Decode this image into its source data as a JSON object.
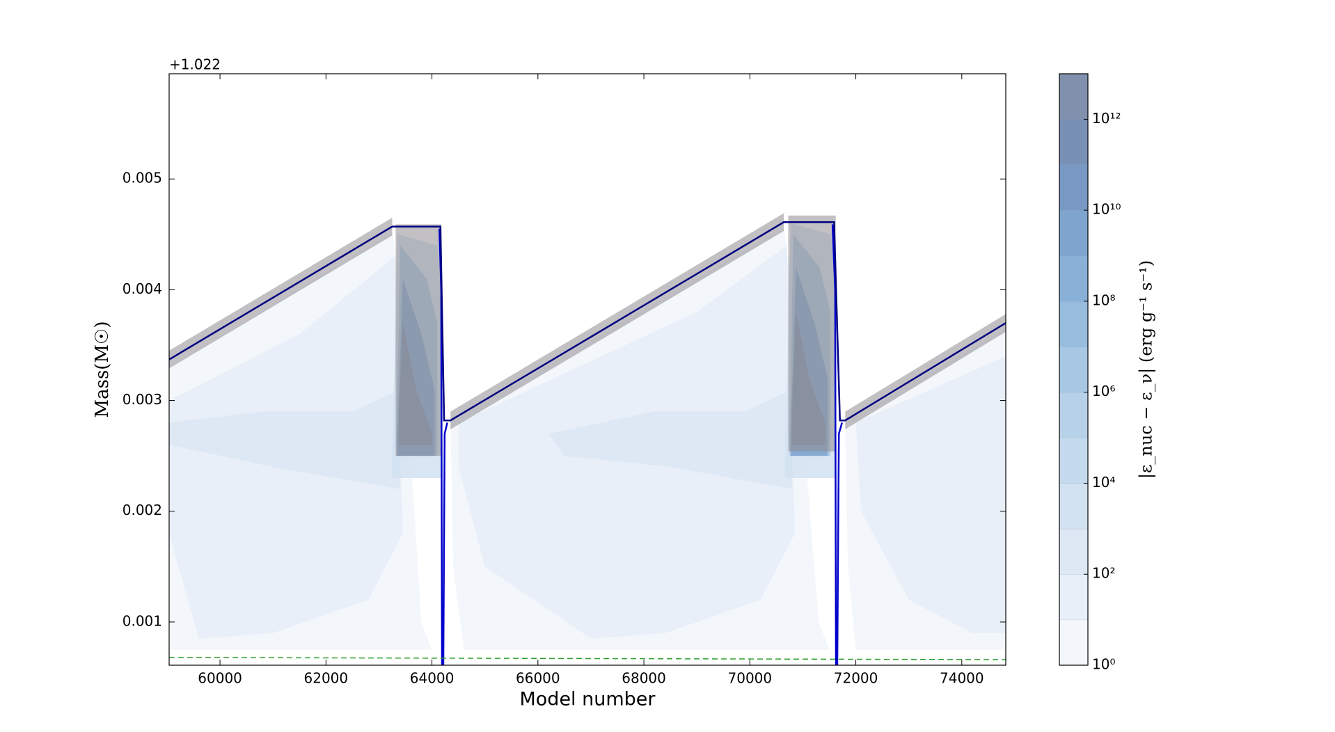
{
  "chart_data": {
    "type": "kippenhahn",
    "xlabel": "Model number",
    "ylabel": "Mass(M☉)",
    "offset_text": "+1.022",
    "xlim": [
      59040,
      74830
    ],
    "ylim": [
      0.00061,
      0.00595
    ],
    "xticks": [
      60000,
      62000,
      64000,
      66000,
      68000,
      70000,
      72000,
      74000
    ],
    "yticks": [
      0.001,
      0.002,
      0.003,
      0.004,
      0.005
    ],
    "series": [
      {
        "color": "#0000cc",
        "width": 2.5,
        "x": [
          64140,
          64175,
          64190,
          64215,
          64240,
          64290
        ],
        "y": [
          0.00455,
          0.004,
          0.00061,
          0.00061,
          0.0027,
          0.0028
        ]
      },
      {
        "color": "#0000cc",
        "width": 2.5,
        "x": [
          71560,
          71610,
          71625,
          71650,
          71680,
          71740
        ],
        "y": [
          0.00459,
          0.004,
          0.00061,
          0.00061,
          0.0027,
          0.0028
        ]
      },
      {
        "color": "#000080",
        "width": 2.5,
        "x": [
          59040,
          63250,
          64160,
          64230,
          64350,
          70640,
          71590,
          71700,
          71800,
          74830
        ],
        "y": [
          0.00337,
          0.00457,
          0.00457,
          0.00282,
          0.00282,
          0.00461,
          0.00461,
          0.00282,
          0.00282,
          0.0037
        ]
      },
      {
        "color": "#2ca02c",
        "width": 1.5,
        "dashed": true,
        "x": [
          59040,
          74830
        ],
        "y": [
          0.00068,
          0.00066
        ]
      }
    ],
    "convection": {
      "color": "#8f8c90",
      "regions": [
        {
          "x": [
            59040,
            63250,
            63250,
            59040
          ],
          "y": [
            0.00345,
            0.00465,
            0.00449,
            0.00329
          ]
        },
        {
          "x": [
            64350,
            70640,
            70640,
            64350
          ],
          "y": [
            0.0029,
            0.00469,
            0.00453,
            0.00274
          ]
        },
        {
          "x": [
            71800,
            74830,
            74830,
            71800
          ],
          "y": [
            0.0029,
            0.00378,
            0.00362,
            0.00274
          ]
        },
        {
          "x": [
            63315,
            64180,
            64180,
            63315
          ],
          "y": [
            0.00459,
            0.00459,
            0.0025,
            0.0025
          ]
        },
        {
          "x": [
            70725,
            71620,
            71620,
            70725
          ],
          "y": [
            0.00467,
            0.00467,
            0.00254,
            0.00254
          ]
        }
      ]
    },
    "burning": {
      "regions": [
        {
          "level": 0,
          "x": [
            59040,
            63250,
            63400,
            63800,
            64000,
            59040
          ],
          "y": [
            0.0033,
            0.00452,
            0.004,
            0.001,
            0.00075,
            0.00075
          ]
        },
        {
          "level": 0,
          "x": [
            64350,
            70640,
            70800,
            71300,
            71500,
            64600,
            64400
          ],
          "y": [
            0.0028,
            0.00456,
            0.004,
            0.001,
            0.00075,
            0.00075,
            0.0015
          ]
        },
        {
          "level": 0,
          "x": [
            71800,
            74830,
            74830,
            72000,
            71850
          ],
          "y": [
            0.0028,
            0.00365,
            0.00075,
            0.00075,
            0.0015
          ]
        },
        {
          "level": 1,
          "x": [
            59040,
            61500,
            63300,
            63450,
            62800,
            61000,
            59600,
            59040
          ],
          "y": [
            0.003,
            0.0036,
            0.0043,
            0.0018,
            0.0012,
            0.0009,
            0.00085,
            0.0018
          ]
        },
        {
          "level": 1,
          "x": [
            64500,
            69000,
            70700,
            70850,
            70200,
            68400,
            67000,
            65000,
            64500
          ],
          "y": [
            0.0028,
            0.0038,
            0.0044,
            0.0018,
            0.0012,
            0.0009,
            0.00085,
            0.0015,
            0.0024
          ]
        },
        {
          "level": 1,
          "x": [
            72000,
            74830,
            74830,
            74200,
            73000,
            72100
          ],
          "y": [
            0.0028,
            0.0034,
            0.0009,
            0.0009,
            0.0012,
            0.002
          ]
        },
        {
          "level": 2,
          "x": [
            59040,
            60800,
            62500,
            63400,
            63400,
            61000,
            59040
          ],
          "y": [
            0.0028,
            0.0029,
            0.0029,
            0.0031,
            0.0022,
            0.0024,
            0.0026
          ]
        },
        {
          "level": 2,
          "x": [
            66200,
            68200,
            69900,
            70800,
            70800,
            68500,
            66500
          ],
          "y": [
            0.0027,
            0.0029,
            0.0029,
            0.0031,
            0.0022,
            0.0024,
            0.0025
          ]
        },
        {
          "level": 3,
          "x": [
            63250,
            63350,
            64100,
            64200,
            64200,
            63250
          ],
          "y": [
            0.0025,
            0.0045,
            0.0044,
            0.004,
            0.0023,
            0.0023
          ]
        },
        {
          "level": 6,
          "x": [
            63330,
            63400,
            63900,
            64100,
            64100,
            63330
          ],
          "y": [
            0.0026,
            0.0044,
            0.0041,
            0.0037,
            0.0025,
            0.0025
          ]
        },
        {
          "level": 9,
          "x": [
            63350,
            63450,
            63800,
            64050,
            64050,
            63350
          ],
          "y": [
            0.0027,
            0.0041,
            0.0036,
            0.0031,
            0.0025,
            0.0025
          ]
        },
        {
          "level": 12,
          "x": [
            63380,
            63450,
            63700,
            64000,
            64000,
            63380
          ],
          "y": [
            0.0029,
            0.0037,
            0.0031,
            0.0027,
            0.0026,
            0.0026
          ]
        },
        {
          "level": 3,
          "x": [
            70670,
            70770,
            71520,
            71620,
            71620,
            70670
          ],
          "y": [
            0.0025,
            0.0046,
            0.0045,
            0.0041,
            0.0023,
            0.0023
          ]
        },
        {
          "level": 6,
          "x": [
            70750,
            70820,
            71320,
            71520,
            71520,
            70750
          ],
          "y": [
            0.0026,
            0.0045,
            0.0042,
            0.0038,
            0.0025,
            0.0025
          ]
        },
        {
          "level": 9,
          "x": [
            70770,
            70870,
            71220,
            71470,
            71470,
            70770
          ],
          "y": [
            0.0027,
            0.0042,
            0.0037,
            0.0032,
            0.0025,
            0.0025
          ]
        },
        {
          "level": 12,
          "x": [
            70800,
            70870,
            71120,
            71420,
            71420,
            70800
          ],
          "y": [
            0.0029,
            0.0038,
            0.0032,
            0.0028,
            0.0026,
            0.0026
          ]
        }
      ]
    },
    "colorbar": {
      "label": "|ε_nuc − ε_ν|  (erg g⁻¹ s⁻¹)",
      "log": true,
      "levels": [
        1,
        10,
        100,
        1000,
        10000,
        100000,
        1000000,
        10000000,
        100000000,
        1000000000,
        10000000000,
        100000000000,
        1000000000000,
        10000000000000
      ],
      "colors": [
        "#f3f7fc",
        "#e8eff8",
        "#dde8f4",
        "#d2e2f1",
        "#c5daed",
        "#b7d1e8",
        "#a7c7e3",
        "#97bcdd",
        "#89b1d7",
        "#7fa5cf",
        "#7899c3",
        "#7890b6",
        "#8090ad"
      ],
      "ticks": [
        {
          "value": 1,
          "label": "10⁰"
        },
        {
          "value": 100,
          "label": "10²"
        },
        {
          "value": 10000,
          "label": "10⁴"
        },
        {
          "value": 1000000,
          "label": "10⁶"
        },
        {
          "value": 100000000,
          "label": "10⁸"
        },
        {
          "value": 10000000000,
          "label": "10¹⁰"
        },
        {
          "value": 1000000000000,
          "label": "10¹²"
        }
      ]
    }
  }
}
